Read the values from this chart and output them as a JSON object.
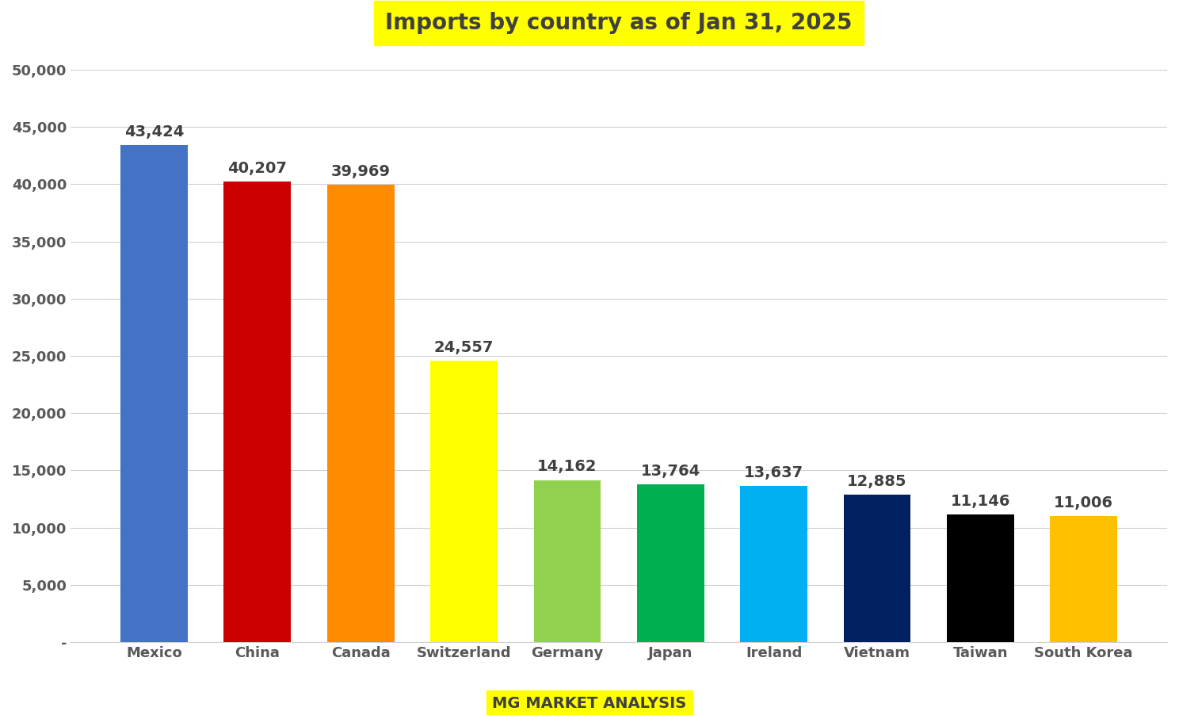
{
  "title": "Imports by country as of Jan 31, 2025",
  "title_bg_color": "#ffff00",
  "title_fontsize": 20,
  "title_fontweight": "bold",
  "title_color": "#404040",
  "categories": [
    "Mexico",
    "China",
    "Canada",
    "Switzerland",
    "Germany",
    "Japan",
    "Ireland",
    "Vietnam",
    "Taiwan",
    "South Korea"
  ],
  "values": [
    43424,
    40207,
    39969,
    24557,
    14162,
    13764,
    13637,
    12885,
    11146,
    11006
  ],
  "bar_colors": [
    "#4472C4",
    "#CC0000",
    "#FF8C00",
    "#FFFF00",
    "#92D050",
    "#00B050",
    "#00B0F0",
    "#002060",
    "#000000",
    "#FFC000"
  ],
  "value_label_fontsize": 14,
  "value_label_fontweight": "bold",
  "value_label_color": "#404040",
  "tick_label_fontsize": 13,
  "tick_label_color": "#595959",
  "tick_label_fontweight": "bold",
  "ylim": [
    0,
    52000
  ],
  "yticks": [
    0,
    5000,
    10000,
    15000,
    20000,
    25000,
    30000,
    35000,
    40000,
    45000,
    50000
  ],
  "ytick_labels": [
    "-",
    "5,000",
    "10,000",
    "15,000",
    "20,000",
    "25,000",
    "30,000",
    "35,000",
    "40,000",
    "45,000",
    "50,000"
  ],
  "background_color": "#ffffff",
  "grid_color": "#d0d0d0",
  "footer_text": "MG MARKET ANALYSIS",
  "footer_bg_color": "#ffff00",
  "footer_fontsize": 14,
  "footer_fontweight": "bold",
  "footer_color": "#404040",
  "bar_width": 0.65
}
